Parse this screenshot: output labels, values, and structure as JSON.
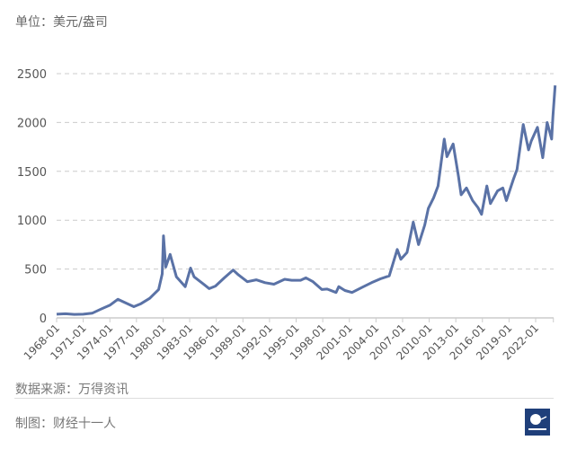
{
  "unit_label": "单位：美元/盎司",
  "source_label": "数据来源：万得资讯",
  "maker_label": "制图：财经十一人",
  "logo_text": "财经十一人",
  "chart_data": {
    "type": "line",
    "title": "",
    "xlabel": "",
    "ylabel": "",
    "ylim": [
      0,
      2500
    ],
    "xlim": [
      1968.0,
      2024.2
    ],
    "yticks": [
      0,
      500,
      1000,
      1500,
      2000,
      2500
    ],
    "xtick_labels": [
      "1968-01",
      "1971-01",
      "1974-01",
      "1977-01",
      "1980-01",
      "1983-01",
      "1986-01",
      "1989-01",
      "1992-01",
      "1995-01",
      "1998-01",
      "2001-01",
      "2004-01",
      "2007-01",
      "2010-01",
      "2013-01",
      "2016-01",
      "2019-01",
      "2022-01"
    ],
    "grid": "horizontal dashed",
    "line_color": "#5a72a6",
    "series": [
      {
        "x": [
          1968.0,
          1969.0,
          1970.0,
          1971.0,
          1972.0,
          1973.0,
          1974.0,
          1974.9,
          1975.5,
          1976.7,
          1977.5,
          1978.5,
          1979.5,
          1979.9,
          1980.05,
          1980.3,
          1980.8,
          1981.5,
          1982.5,
          1983.1,
          1983.5,
          1984.5,
          1985.2,
          1985.9,
          1986.9,
          1987.9,
          1988.5,
          1989.5,
          1990.5,
          1991.5,
          1992.5,
          1993.7,
          1994.5,
          1995.5,
          1996.1,
          1996.9,
          1997.9,
          1998.5,
          1999.5,
          1999.8,
          2000.5,
          2001.3,
          2002.5,
          2003.5,
          2004.5,
          2005.5,
          2006.4,
          2006.8,
          2007.5,
          2008.2,
          2008.8,
          2009.5,
          2009.9,
          2010.5,
          2011.0,
          2011.7,
          2012.0,
          2012.7,
          2013.3,
          2013.6,
          2014.2,
          2014.9,
          2015.5,
          2015.9,
          2016.5,
          2016.9,
          2017.7,
          2018.3,
          2018.7,
          2019.5,
          2019.9,
          2020.6,
          2021.2,
          2021.5,
          2022.2,
          2022.8,
          2023.3,
          2023.8,
          2023.95,
          2024.2
        ],
        "y": [
          38,
          42,
          36,
          38,
          48,
          90,
          130,
          190,
          165,
          115,
          145,
          200,
          290,
          450,
          840,
          520,
          650,
          420,
          320,
          510,
          420,
          350,
          300,
          325,
          410,
          490,
          440,
          370,
          390,
          360,
          345,
          395,
          385,
          385,
          410,
          370,
          290,
          295,
          260,
          320,
          280,
          260,
          315,
          360,
          400,
          430,
          700,
          600,
          670,
          980,
          750,
          950,
          1120,
          1230,
          1350,
          1830,
          1650,
          1780,
          1450,
          1260,
          1330,
          1200,
          1130,
          1060,
          1350,
          1170,
          1300,
          1330,
          1200,
          1420,
          1520,
          1980,
          1720,
          1810,
          1950,
          1640,
          2000,
          1830,
          2060,
          2380
        ]
      }
    ]
  }
}
